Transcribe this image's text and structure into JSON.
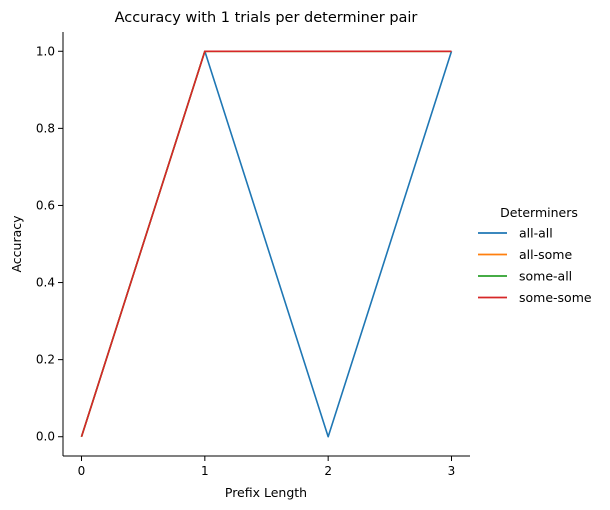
{
  "chart_data": {
    "type": "line",
    "title": "Accuracy with 1 trials per determiner pair",
    "xlabel": "Prefix Length",
    "ylabel": "Accuracy",
    "x": [
      0,
      1,
      2,
      3
    ],
    "x_ticks": [
      "0",
      "1",
      "2",
      "3"
    ],
    "y_ticks": [
      "0.0",
      "0.2",
      "0.4",
      "0.6",
      "0.8",
      "1.0"
    ],
    "xlim": [
      -0.15,
      3.15
    ],
    "ylim": [
      -0.05,
      1.05
    ],
    "grid": false,
    "legend": {
      "title": "Determiners",
      "placement": "right"
    },
    "series": [
      {
        "name": "all-all",
        "values": [
          0.0,
          1.0,
          0.0,
          1.0
        ],
        "color": "#1f77b4"
      },
      {
        "name": "all-some",
        "values": [
          0.0,
          1.0,
          1.0,
          1.0
        ],
        "color": "#ff7f0e"
      },
      {
        "name": "some-all",
        "values": [
          0.0,
          1.0,
          1.0,
          1.0
        ],
        "color": "#2ca02c"
      },
      {
        "name": "some-some",
        "values": [
          0.0,
          1.0,
          1.0,
          1.0
        ],
        "color": "#d62728"
      }
    ]
  }
}
